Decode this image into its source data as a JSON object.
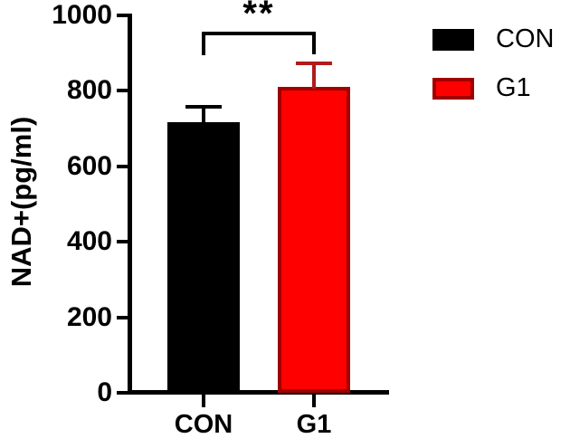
{
  "chart_data": {
    "type": "bar",
    "title": "",
    "ylabel": "NAD+(pg/ml)",
    "xlabel": "",
    "categories": [
      "CON",
      "G1"
    ],
    "values": [
      717,
      810
    ],
    "errors_plus": [
      40,
      62
    ],
    "bar_fills": [
      "#000000",
      "#ff0000"
    ],
    "bar_borders": [
      "#000000",
      "#a00000"
    ],
    "error_colors": [
      "#000000",
      "#b01c1c"
    ],
    "ylim": [
      0,
      1000
    ],
    "yticks": [
      0,
      200,
      400,
      600,
      800,
      1000
    ],
    "grid": false,
    "legend": {
      "position": "top-right",
      "entries": [
        {
          "label": "CON",
          "fill": "#000000",
          "border": "#000000"
        },
        {
          "label": "G1",
          "fill": "#ff0000",
          "border": "#a00000"
        }
      ]
    },
    "significance": {
      "label": "**",
      "between": [
        "CON",
        "G1"
      ]
    },
    "colors": {
      "axis": "#000000",
      "background": "#ffffff",
      "text": "#000000"
    }
  }
}
